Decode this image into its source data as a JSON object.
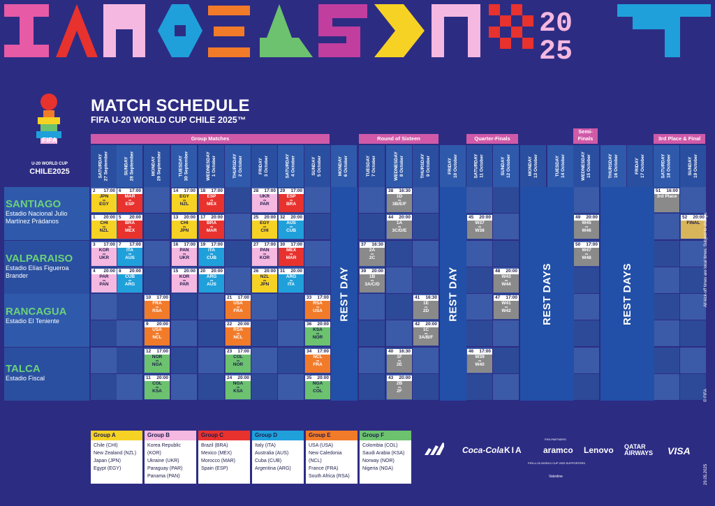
{
  "header": {
    "title": "MATCH SCHEDULE",
    "subtitle": "FIFA U-20 WORLD CUP CHILE 2025™"
  },
  "logo": {
    "brand": "FIFA",
    "line1": "U-20 WORLD CUP",
    "line2": "CHILE2025"
  },
  "stages": [
    "Group Matches",
    "Round of Sixteen",
    "Quarter-Finals",
    "Semi-Finals",
    "3rd Place & Final"
  ],
  "days": [
    [
      "SATURDAY",
      "27 September"
    ],
    [
      "SUNDAY",
      "28 September"
    ],
    [
      "MONDAY",
      "29 September"
    ],
    [
      "TUESDAY",
      "30 September"
    ],
    [
      "WEDNESDAY",
      "1 October"
    ],
    [
      "THURSDAY",
      "2 October"
    ],
    [
      "FRIDAY",
      "3 October"
    ],
    [
      "SATURDAY",
      "4 October"
    ],
    [
      "SUNDAY",
      "5 October"
    ],
    [
      "MONDAY",
      "6 October"
    ],
    [
      "TUESDAY",
      "7 October"
    ],
    [
      "WEDNESDAY",
      "8 October"
    ],
    [
      "THURSDAY",
      "9 October"
    ],
    [
      "FRIDAY",
      "10 October"
    ],
    [
      "SATURDAY",
      "11 October"
    ],
    [
      "SUNDAY",
      "12 October"
    ],
    [
      "MONDAY",
      "13 October"
    ],
    [
      "TUESDAY",
      "14 October"
    ],
    [
      "WEDNESDAY",
      "15 October"
    ],
    [
      "THURSDAY",
      "16 October"
    ],
    [
      "FRIDAY",
      "17 October"
    ],
    [
      "SATURDAY",
      "18 October"
    ],
    [
      "SUNDAY",
      "19 October"
    ]
  ],
  "rest": [
    "REST DAY",
    "REST DAY",
    "REST DAYS",
    "REST DAYS"
  ],
  "venues": [
    {
      "city": "SANTIAGO",
      "stadium": "Estadio Nacional Julio Martínez Prádanos"
    },
    {
      "city": "VALPARAISO",
      "stadium": "Estadio Elías Figueroa Brander"
    },
    {
      "city": "RANCAGUA",
      "stadium": "Estadio El Teniente"
    },
    {
      "city": "TALCA",
      "stadium": "Estadio Fiscal"
    }
  ],
  "matches": [
    {
      "n": "2",
      "t": "17:00",
      "a": "JPN",
      "b": "EGY",
      "g": "A"
    },
    {
      "n": "6",
      "t": "17:00",
      "a": "MAR",
      "b": "ESP",
      "g": "C"
    },
    {
      "n": "14",
      "t": "17:00",
      "a": "EGY",
      "b": "NZL",
      "g": "A"
    },
    {
      "n": "18",
      "t": "17:00",
      "a": "ESP",
      "b": "MEX",
      "g": "C"
    },
    {
      "n": "28",
      "t": "17:00",
      "a": "UKR",
      "b": "PAR",
      "g": "B"
    },
    {
      "n": "29",
      "t": "17:00",
      "a": "ESP",
      "b": "BRA",
      "g": "C"
    },
    {
      "n": "38",
      "t": "16:30",
      "a": "1D",
      "b": "3B/E/F",
      "g": "K"
    },
    {
      "n": "51",
      "t": "16:00",
      "a": "3rd Place",
      "b": "",
      "g": "K"
    },
    {
      "n": "1",
      "t": "20:00",
      "a": "CHI",
      "b": "NZL",
      "g": "A"
    },
    {
      "n": "5",
      "t": "20:00",
      "a": "BRA",
      "b": "MEX",
      "g": "C"
    },
    {
      "n": "13",
      "t": "20:00",
      "a": "CHI",
      "b": "JPN",
      "g": "A"
    },
    {
      "n": "17",
      "t": "20:00",
      "a": "BRA",
      "b": "MAR",
      "g": "C"
    },
    {
      "n": "25",
      "t": "20:00",
      "a": "EGY",
      "b": "CHI",
      "g": "A"
    },
    {
      "n": "32",
      "t": "20:00",
      "a": "AUS",
      "b": "CUB",
      "g": "D"
    },
    {
      "n": "44",
      "t": "20:00",
      "a": "1A",
      "b": "3C/D/E",
      "g": "K"
    },
    {
      "n": "45",
      "t": "20:00",
      "a": "W37",
      "b": "W38",
      "g": "K"
    },
    {
      "n": "49",
      "t": "20:00",
      "a": "W45",
      "b": "W46",
      "g": "K"
    },
    {
      "n": "52",
      "t": "20:00",
      "a": "FINAL",
      "b": "",
      "g": "Final"
    },
    {
      "n": "3",
      "t": "17:00",
      "a": "KOR",
      "b": "UKR",
      "g": "B"
    },
    {
      "n": "7",
      "t": "17:00",
      "a": "ITA",
      "b": "AUS",
      "g": "D"
    },
    {
      "n": "16",
      "t": "17:00",
      "a": "PAN",
      "b": "UKR",
      "g": "B"
    },
    {
      "n": "19",
      "t": "17:00",
      "a": "ITA",
      "b": "CUB",
      "g": "D"
    },
    {
      "n": "27",
      "t": "17:00",
      "a": "PAN",
      "b": "KOR",
      "g": "B"
    },
    {
      "n": "30",
      "t": "17:00",
      "a": "MEX",
      "b": "MAR",
      "g": "C"
    },
    {
      "n": "37",
      "t": "16:30",
      "a": "2A",
      "b": "2C",
      "g": "K"
    },
    {
      "n": "50",
      "t": "17:00",
      "a": "W47",
      "b": "W48",
      "g": "K"
    },
    {
      "n": "4",
      "t": "20:00",
      "a": "PAR",
      "b": "PAN",
      "g": "B"
    },
    {
      "n": "8",
      "t": "20:00",
      "a": "CUB",
      "b": "ARG",
      "g": "D"
    },
    {
      "n": "15",
      "t": "20:00",
      "a": "KOR",
      "b": "PAR",
      "g": "B"
    },
    {
      "n": "20",
      "t": "20:00",
      "a": "ARG",
      "b": "AUS",
      "g": "D"
    },
    {
      "n": "26",
      "t": "20:00",
      "a": "NZL",
      "b": "JPN",
      "g": "A"
    },
    {
      "n": "31",
      "t": "20:00",
      "a": "ARG",
      "b": "ITA",
      "g": "D"
    },
    {
      "n": "39",
      "t": "20:00",
      "a": "1B",
      "b": "3A/C/D",
      "g": "K"
    },
    {
      "n": "48",
      "t": "20:00",
      "a": "W43",
      "b": "W44",
      "g": "K"
    },
    {
      "n": "10",
      "t": "17:00",
      "a": "FRA",
      "b": "RSA",
      "g": "E"
    },
    {
      "n": "21",
      "t": "17:00",
      "a": "USA",
      "b": "FRA",
      "g": "E"
    },
    {
      "n": "33",
      "t": "17:00",
      "a": "RSA",
      "b": "USA",
      "g": "E"
    },
    {
      "n": "41",
      "t": "16:30",
      "a": "1E",
      "b": "2D",
      "g": "K"
    },
    {
      "n": "47",
      "t": "17:00",
      "a": "W41",
      "b": "W42",
      "g": "K"
    },
    {
      "n": "9",
      "t": "20:00",
      "a": "USA",
      "b": "NCL",
      "g": "E"
    },
    {
      "n": "22",
      "t": "20:00",
      "a": "RSA",
      "b": "NCL",
      "g": "E"
    },
    {
      "n": "36",
      "t": "20:00",
      "a": "KSA",
      "b": "NOR",
      "g": "F"
    },
    {
      "n": "42",
      "t": "20:00",
      "a": "1C",
      "b": "3A/B/F",
      "g": "K"
    },
    {
      "n": "12",
      "t": "17:00",
      "a": "NOR",
      "b": "NGA",
      "g": "F"
    },
    {
      "n": "23",
      "t": "17:00",
      "a": "COL",
      "b": "NOR",
      "g": "F"
    },
    {
      "n": "34",
      "t": "17:00",
      "a": "NCL",
      "b": "FRA",
      "g": "E"
    },
    {
      "n": "40",
      "t": "16:30",
      "a": "1F",
      "b": "2E",
      "g": "K"
    },
    {
      "n": "46",
      "t": "17:00",
      "a": "W39",
      "b": "W40",
      "g": "K"
    },
    {
      "n": "11",
      "t": "20:00",
      "a": "COL",
      "b": "KSA",
      "g": "F"
    },
    {
      "n": "24",
      "t": "20:00",
      "a": "NGA",
      "b": "KSA",
      "g": "F"
    },
    {
      "n": "35",
      "t": "20:00",
      "a": "NGA",
      "b": "COL",
      "g": "F"
    },
    {
      "n": "43",
      "t": "20:00",
      "a": "2B",
      "b": "2F",
      "g": "K"
    }
  ],
  "vs": "vs",
  "groups": [
    {
      "name": "Group A",
      "color": "#f6d224",
      "teams": [
        "Chile (CHI)",
        "New Zealand (NZL)",
        "Japan (JPN)",
        "Egypt (EGY)"
      ]
    },
    {
      "name": "Group B",
      "color": "#f5b8e0",
      "teams": [
        "Korea Republic (KOR)",
        "Ukraine (UKR)",
        "Paraguay (PAR)",
        "Panama (PAN)"
      ]
    },
    {
      "name": "Group C",
      "color": "#e8322e",
      "teams": [
        "Brazil (BRA)",
        "Mexico (MEX)",
        "Morocco (MAR)",
        "Spain (ESP)"
      ]
    },
    {
      "name": "Group D",
      "color": "#1fa0db",
      "teams": [
        "Italy (ITA)",
        "Australia (AUS)",
        "Cuba (CUB)",
        "Argentina (ARG)"
      ]
    },
    {
      "name": "Group E",
      "color": "#f27b2a",
      "teams": [
        "USA (USA)",
        "New Caledonia (NCL)",
        "France (FRA)",
        "South Africa (RSA)"
      ]
    },
    {
      "name": "Group F",
      "color": "#6cc26e",
      "teams": [
        "Colombia (COL)",
        "Saudi Arabia (KSA)",
        "Norway (NOR)",
        "Nigeria (NGA)"
      ]
    }
  ],
  "sponsors": [
    "Coca-Cola",
    "KIA",
    "aramco",
    "Lenovo",
    "QATAR AIRWAYS",
    "VISA"
  ],
  "partners_label": "FIFA PARTNERS",
  "supporters_label": "FIFA U-20 WORLD CUP 2025 SUPPORTERS",
  "supporter": "Valvoline",
  "notes": {
    "times": "All kick-off times are local times. Subject to change.",
    "copyright": "© FIFA",
    "date": "29.05.2025"
  }
}
